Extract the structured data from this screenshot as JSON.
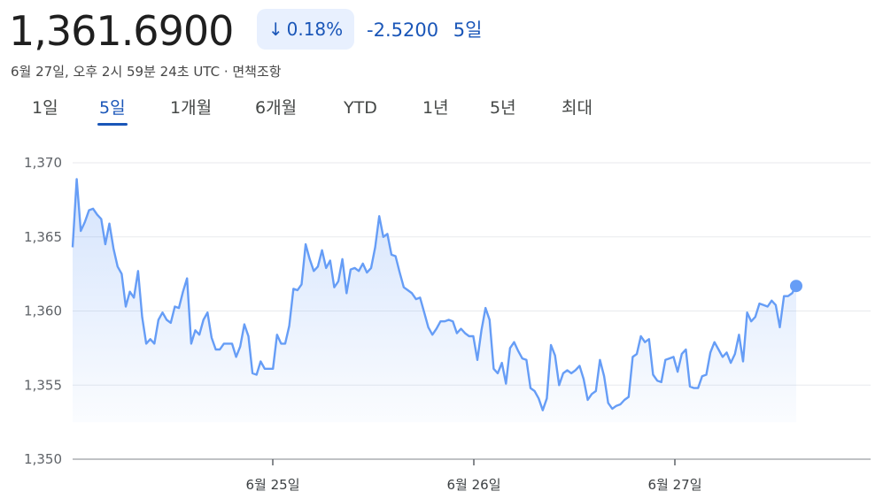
{
  "header": {
    "price": "1,361.6900",
    "change_pct": "0.18%",
    "change_abs": "-2.5200",
    "change_period": "5일",
    "meta": "6월 27일, 오후 2시 59분 24초 UTC · 면책조항"
  },
  "tabs": [
    {
      "label": "1일",
      "active": false
    },
    {
      "label": "5일",
      "active": true
    },
    {
      "label": "1개월",
      "active": false
    },
    {
      "label": "6개월",
      "active": false
    },
    {
      "label": "YTD",
      "active": false
    },
    {
      "label": "1년",
      "active": false
    },
    {
      "label": "5년",
      "active": false
    },
    {
      "label": "최대",
      "active": false
    }
  ],
  "colors": {
    "line": "#669df6",
    "accent": "#1a56b8",
    "pill_bg": "#e8f0fe"
  },
  "chart_data": {
    "type": "area",
    "ylim": [
      1350,
      1370
    ],
    "ytick_labels": [
      "1,370",
      "1,365",
      "1,360",
      "1,355",
      "1,350"
    ],
    "ytick_values": [
      1370,
      1365,
      1360,
      1355,
      1350
    ],
    "xtick_labels": [
      "6월 25일",
      "6월 26일",
      "6월 27일"
    ],
    "xtick_values": [
      1,
      2,
      3
    ],
    "x_range": [
      0,
      4
    ],
    "values": [
      1364.3,
      1368.9,
      1365.4,
      1366.0,
      1366.8,
      1366.9,
      1366.5,
      1366.2,
      1364.5,
      1365.9,
      1364.2,
      1363.0,
      1362.5,
      1360.3,
      1361.3,
      1360.9,
      1362.7,
      1359.6,
      1357.8,
      1358.1,
      1357.8,
      1359.4,
      1359.9,
      1359.4,
      1359.2,
      1360.3,
      1360.2,
      1361.3,
      1362.2,
      1357.8,
      1358.7,
      1358.4,
      1359.4,
      1359.9,
      1358.2,
      1357.4,
      1357.4,
      1357.8,
      1357.8,
      1357.8,
      1356.9,
      1357.6,
      1359.1,
      1358.3,
      1355.8,
      1355.7,
      1356.6,
      1356.1,
      1356.1,
      1356.1,
      1358.4,
      1357.8,
      1357.8,
      1359.0,
      1361.5,
      1361.4,
      1361.8,
      1364.5,
      1363.5,
      1362.7,
      1363.0,
      1364.1,
      1362.9,
      1363.4,
      1361.6,
      1362.0,
      1363.5,
      1361.2,
      1362.8,
      1362.9,
      1362.7,
      1363.2,
      1362.6,
      1362.9,
      1364.3,
      1366.4,
      1365.0,
      1365.2,
      1363.8,
      1363.7,
      1362.6,
      1361.6,
      1361.4,
      1361.2,
      1360.8,
      1360.9,
      1359.9,
      1358.9,
      1358.4,
      1358.8,
      1359.3,
      1359.3,
      1359.4,
      1359.3,
      1358.5,
      1358.8,
      1358.5,
      1358.3,
      1358.3,
      1356.7,
      1358.7,
      1360.2,
      1359.4,
      1356.1,
      1355.8,
      1356.5,
      1355.1,
      1357.5,
      1357.9,
      1357.3,
      1356.8,
      1356.7,
      1354.8,
      1354.6,
      1354.1,
      1353.3,
      1354.1,
      1357.7,
      1357.0,
      1355.0,
      1355.8,
      1356.0,
      1355.8,
      1356.0,
      1356.3,
      1355.4,
      1354.0,
      1354.4,
      1354.6,
      1356.7,
      1355.6,
      1353.8,
      1353.4,
      1353.6,
      1353.7,
      1354.0,
      1354.2,
      1356.9,
      1357.1,
      1358.3,
      1357.9,
      1358.1,
      1355.7,
      1355.3,
      1355.2,
      1356.7,
      1356.8,
      1356.9,
      1355.9,
      1357.1,
      1357.4,
      1354.9,
      1354.8,
      1354.8,
      1355.6,
      1355.7,
      1357.2,
      1357.9,
      1357.4,
      1356.9,
      1357.2,
      1356.5,
      1357.1,
      1358.4,
      1356.6,
      1359.9,
      1359.3,
      1359.6,
      1360.5,
      1360.4,
      1360.3,
      1360.7,
      1360.4,
      1358.9,
      1361.0,
      1361.0,
      1361.2,
      1361.69
    ]
  }
}
